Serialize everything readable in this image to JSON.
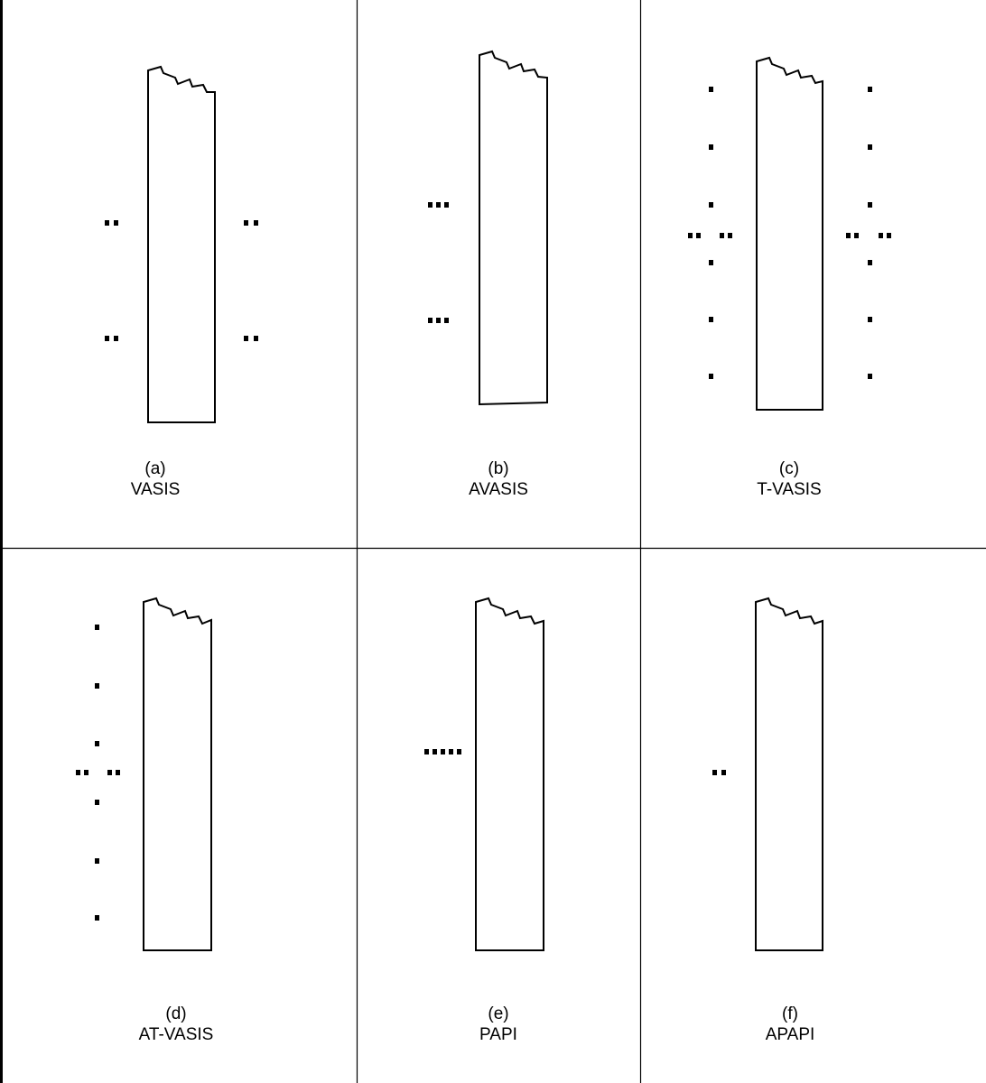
{
  "panels": [
    {
      "key": "a",
      "letter": "(a)",
      "name": "VASIS"
    },
    {
      "key": "b",
      "letter": "(b)",
      "name": "AVASIS"
    },
    {
      "key": "c",
      "letter": "(c)",
      "name": "T-VASIS"
    },
    {
      "key": "d",
      "letter": "(d)",
      "name": "AT-VASIS"
    },
    {
      "key": "e",
      "letter": "(e)",
      "name": "PAPI"
    },
    {
      "key": "f",
      "letter": "(f)",
      "name": "APAPI"
    }
  ]
}
